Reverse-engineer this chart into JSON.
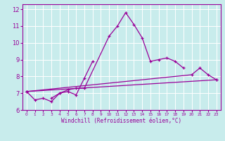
{
  "xlabel": "Windchill (Refroidissement éolien,°C)",
  "ylabel": "",
  "xlim": [
    -0.5,
    23.5
  ],
  "ylim": [
    6,
    12.3
  ],
  "xticks": [
    0,
    1,
    2,
    3,
    4,
    5,
    6,
    7,
    8,
    9,
    10,
    11,
    12,
    13,
    14,
    15,
    16,
    17,
    18,
    19,
    20,
    21,
    22,
    23
  ],
  "yticks": [
    6,
    7,
    8,
    9,
    10,
    11,
    12
  ],
  "background_color": "#c8ecec",
  "grid_color": "#b0d8d8",
  "line_color": "#990099",
  "series": [
    [
      7.1,
      6.6,
      6.7,
      6.5,
      7.0,
      7.1,
      6.9,
      7.9,
      8.9,
      null,
      null,
      null,
      null,
      null,
      null,
      null,
      null,
      null,
      null,
      null,
      null,
      null,
      null,
      null
    ],
    [
      null,
      null,
      null,
      6.7,
      7.0,
      7.2,
      7.3,
      7.3,
      null,
      null,
      10.4,
      11.0,
      11.8,
      11.1,
      10.3,
      8.9,
      9.0,
      9.1,
      8.9,
      8.5,
      null,
      null,
      null,
      null
    ],
    [
      7.1,
      null,
      null,
      null,
      null,
      null,
      null,
      null,
      null,
      null,
      null,
      null,
      null,
      null,
      null,
      null,
      null,
      null,
      null,
      null,
      8.1,
      8.5,
      8.1,
      7.8
    ],
    [
      7.1,
      null,
      null,
      null,
      null,
      null,
      null,
      null,
      null,
      null,
      null,
      null,
      null,
      null,
      null,
      null,
      null,
      null,
      null,
      null,
      null,
      null,
      null,
      7.8
    ]
  ],
  "figsize": [
    3.2,
    2.0
  ],
  "dpi": 100
}
